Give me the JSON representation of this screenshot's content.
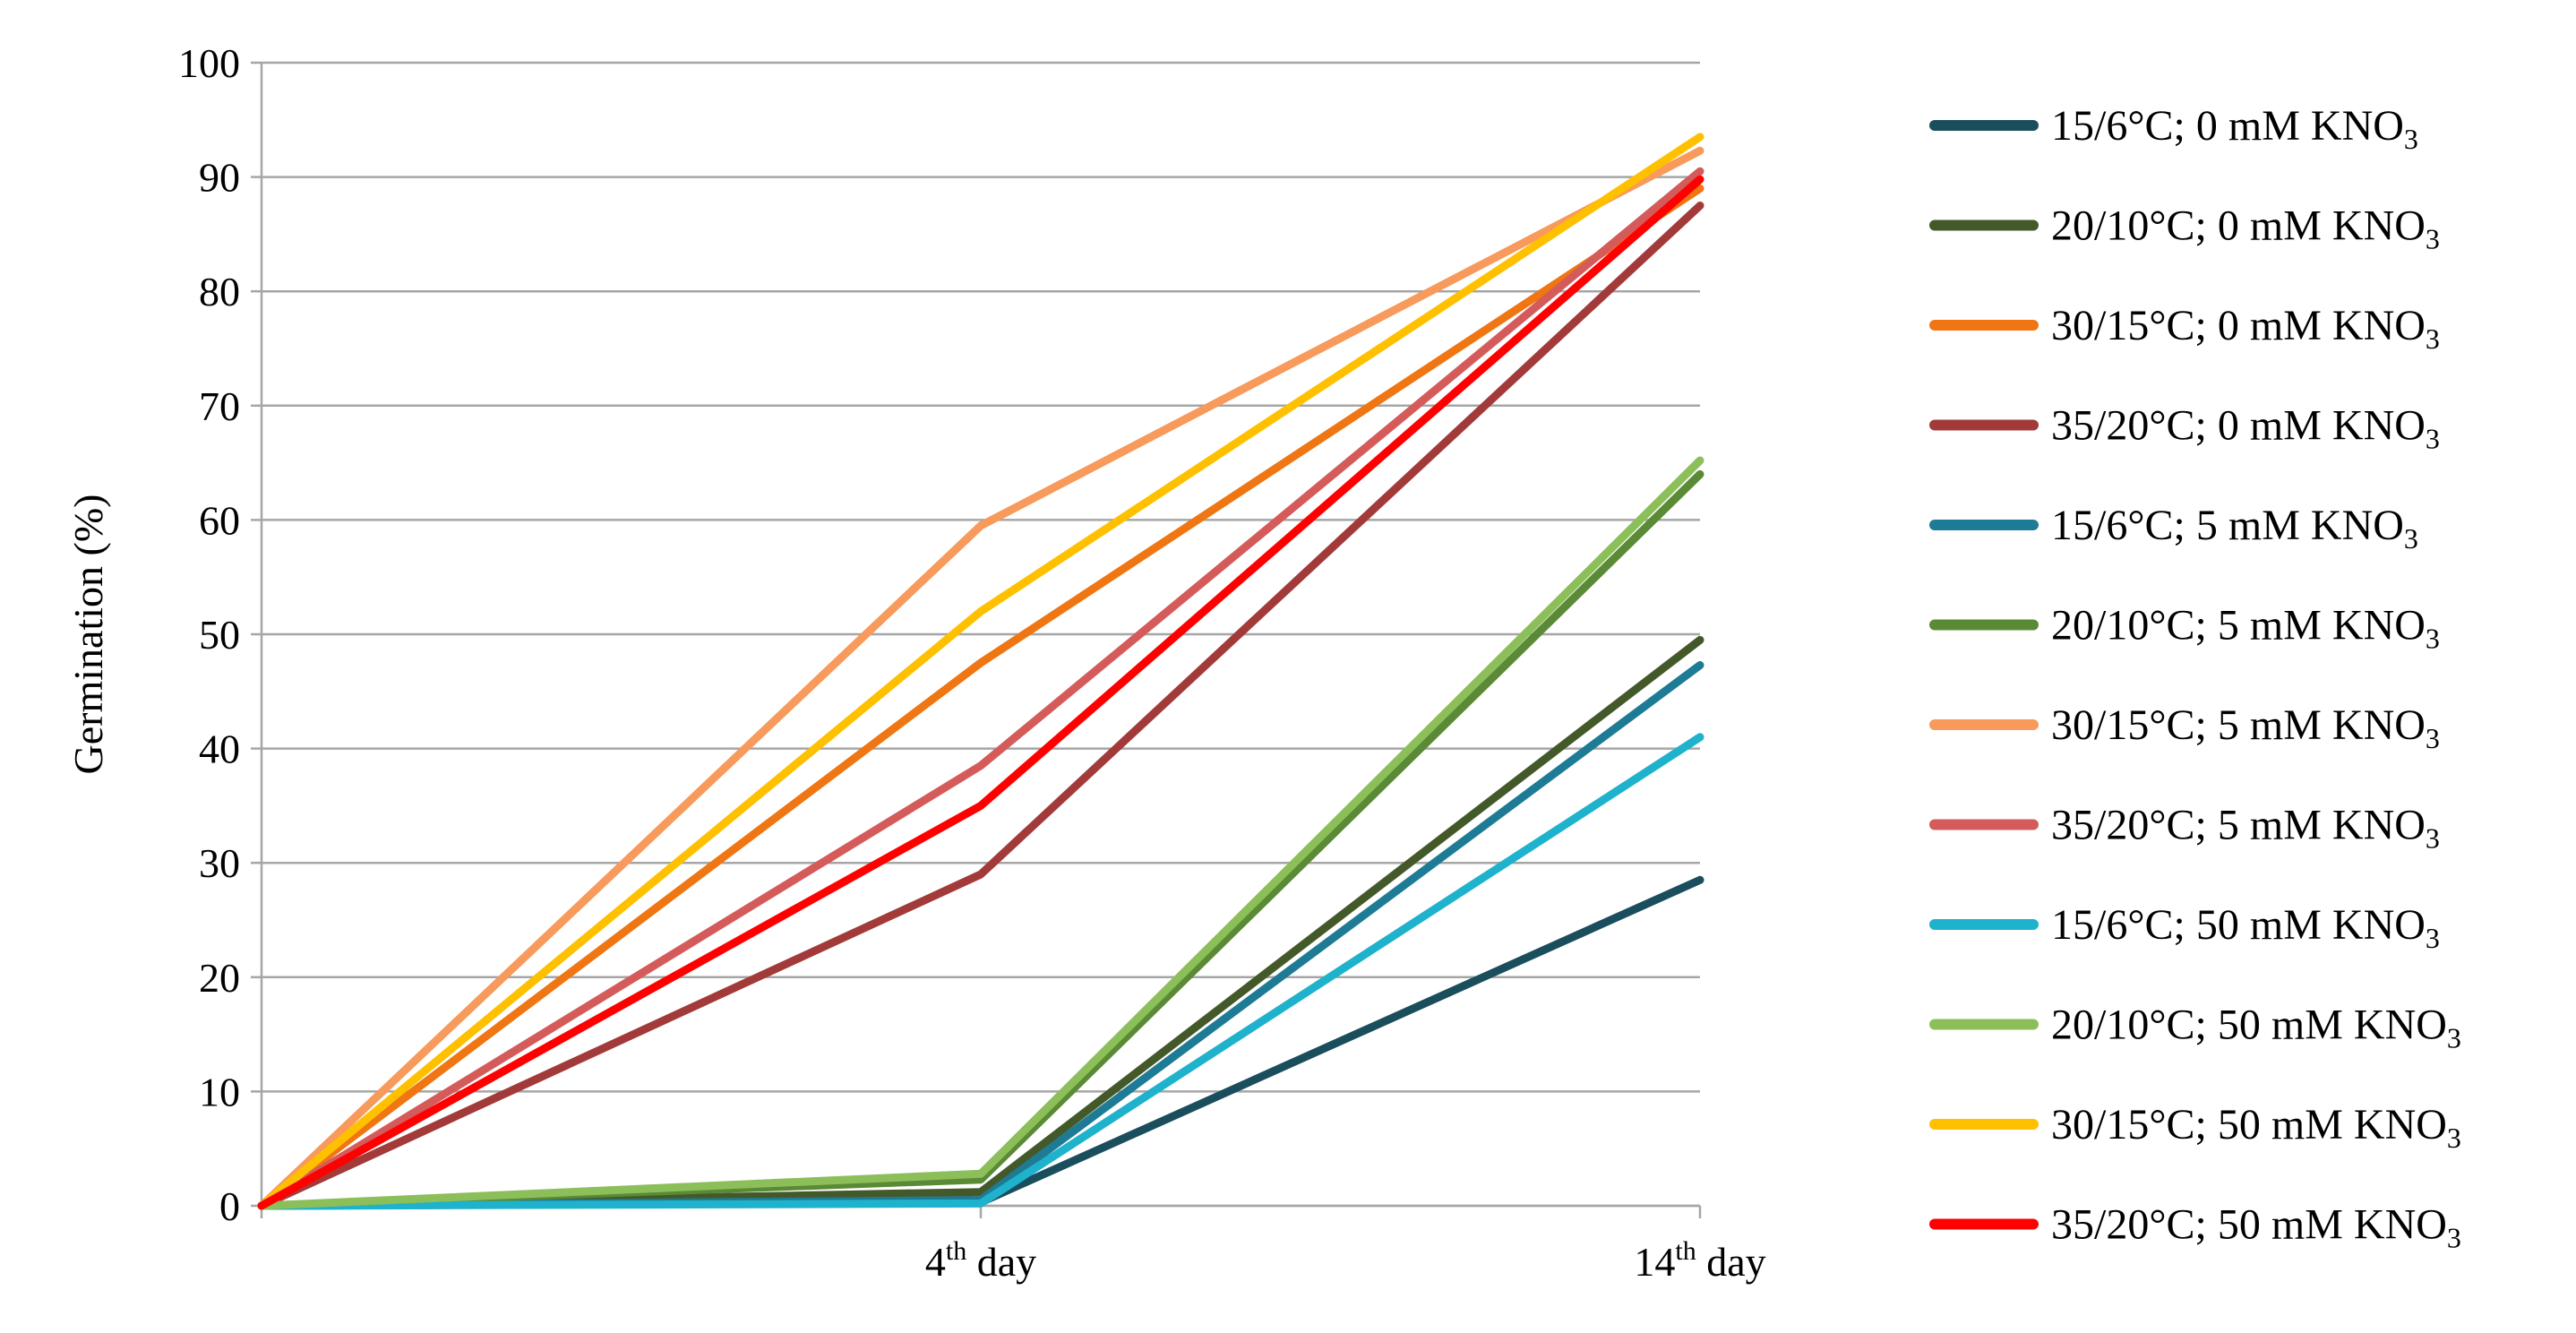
{
  "chart_data": {
    "type": "line",
    "ylabel": "Germination (%)",
    "ylim": [
      0,
      100
    ],
    "y_ticks": [
      "0",
      "10",
      "20",
      "30",
      "40",
      "50",
      "60",
      "70",
      "80",
      "90",
      "100"
    ],
    "grid": true,
    "legend_position": "right",
    "categories": [
      "",
      "4th day",
      "14th day"
    ],
    "category_labels": [
      {
        "base": "",
        "sup": "",
        "tail": ""
      },
      {
        "base": "4",
        "sup": "th",
        "tail": " day"
      },
      {
        "base": "14",
        "sup": "th",
        "tail": " day"
      }
    ],
    "series": [
      {
        "name": "15/6°C; 0 mM KNO₃",
        "legend_main": "15/6°C; 0 mM KNO",
        "legend_sub": "3",
        "color": "#1a4e5c",
        "values": [
          0,
          0.3,
          28.5
        ]
      },
      {
        "name": "20/10°C; 0 mM KNO₃",
        "legend_main": "20/10°C; 0 mM KNO",
        "legend_sub": "3",
        "color": "#44592a",
        "values": [
          0,
          1.2,
          49.5
        ]
      },
      {
        "name": "30/15°C; 0 mM KNO₃",
        "legend_main": "30/15°C; 0 mM KNO",
        "legend_sub": "3",
        "color": "#ef7613",
        "values": [
          0,
          47.5,
          89.0
        ]
      },
      {
        "name": "35/20°C; 0 mM KNO₃",
        "legend_main": "35/20°C; 0 mM KNO",
        "legend_sub": "3",
        "color": "#a33a3a",
        "values": [
          0,
          29.0,
          87.5
        ]
      },
      {
        "name": "15/6°C; 5 mM KNO₃",
        "legend_main": "15/6°C; 5 mM KNO",
        "legend_sub": "3",
        "color": "#1e7b95",
        "values": [
          0,
          0.5,
          47.3
        ]
      },
      {
        "name": "20/10°C; 5 mM KNO₃",
        "legend_main": "20/10°C; 5 mM KNO",
        "legend_sub": "3",
        "color": "#5a8a35",
        "values": [
          0,
          2.3,
          64.0
        ]
      },
      {
        "name": "30/15°C; 5 mM KNO₃",
        "legend_main": "30/15°C; 5 mM KNO",
        "legend_sub": "3",
        "color": "#f79a5b",
        "values": [
          0,
          59.5,
          92.3
        ]
      },
      {
        "name": "35/20°C; 5 mM KNO₃",
        "legend_main": "35/20°C; 5 mM KNO",
        "legend_sub": "3",
        "color": "#d55b5b",
        "values": [
          0,
          38.5,
          90.5
        ]
      },
      {
        "name": "15/6°C; 50 mM KNO₃",
        "legend_main": "15/6°C; 50 mM KNO",
        "legend_sub": "3",
        "color": "#1eb2cc",
        "values": [
          0,
          0.2,
          41.0
        ]
      },
      {
        "name": "20/10°C; 50 mM KNO₃",
        "legend_main": "20/10°C; 50 mM KNO",
        "legend_sub": "3",
        "color": "#8cbf5a",
        "values": [
          0,
          2.8,
          65.2
        ]
      },
      {
        "name": "30/15°C; 50 mM KNO₃",
        "legend_main": "30/15°C; 50 mM KNO",
        "legend_sub": "3",
        "color": "#ffc000",
        "values": [
          0,
          52.0,
          93.5
        ]
      },
      {
        "name": "35/20°C; 50 mM KNO₃",
        "legend_main": "35/20°C; 50 mM KNO",
        "legend_sub": "3",
        "color": "#ff0000",
        "values": [
          0,
          35.0,
          89.8
        ]
      }
    ]
  }
}
